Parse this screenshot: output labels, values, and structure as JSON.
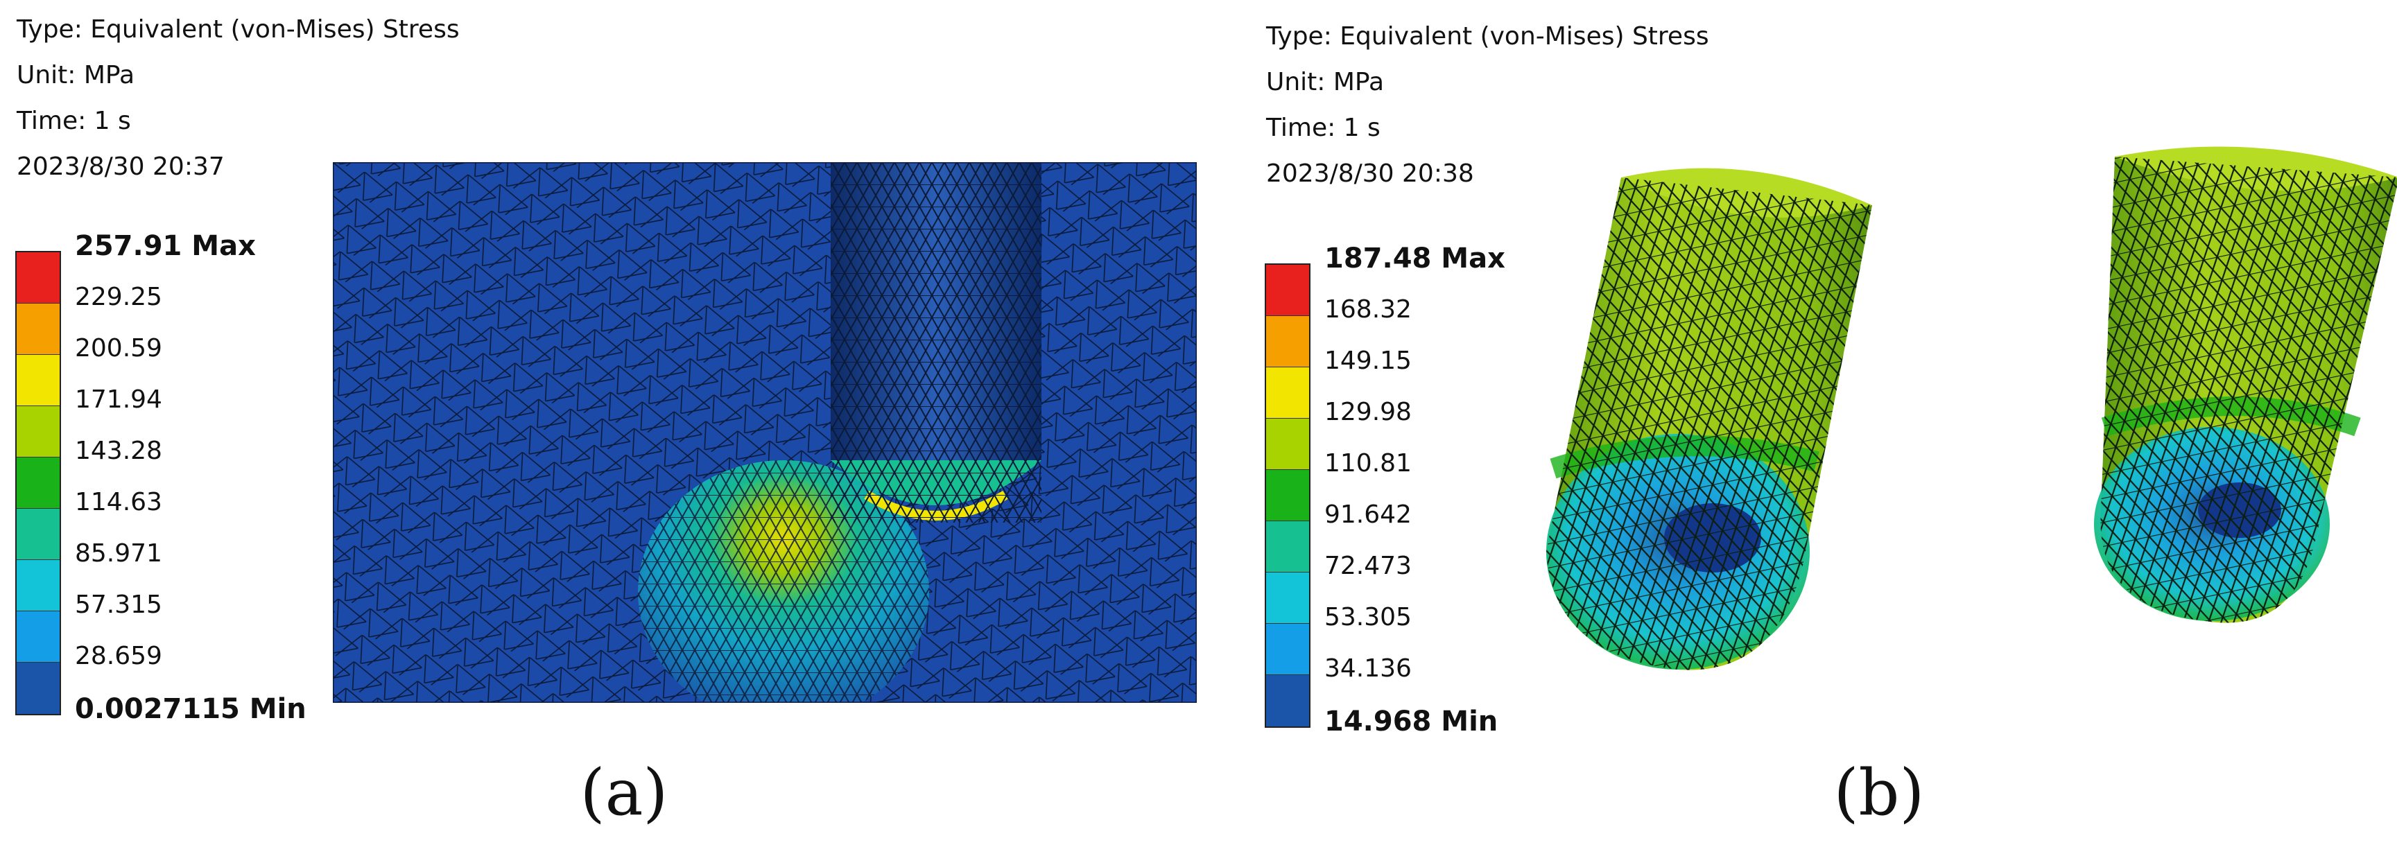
{
  "panels": [
    {
      "id": "a",
      "caption": "(a)",
      "info": {
        "type": "Type: Equivalent (von-Mises) Stress",
        "unit": "Unit: MPa",
        "time": "Time: 1 s",
        "timestamp": "2023/8/30 20:37"
      },
      "legend": {
        "labels": [
          "257.91 Max",
          "229.25",
          "200.59",
          "171.94",
          "143.28",
          "114.63",
          "85.971",
          "57.315",
          "28.659",
          "0.0027115 Min"
        ],
        "colors": [
          "#e8201e",
          "#f5a000",
          "#f2e600",
          "#a8d200",
          "#19b319",
          "#17c090",
          "#13c3d8",
          "#149ee8",
          "#1a55aa"
        ]
      }
    },
    {
      "id": "b",
      "caption": "(b)",
      "info": {
        "type": "Type: Equivalent (von-Mises) Stress",
        "unit": "Unit: MPa",
        "time": "Time: 1 s",
        "timestamp": "2023/8/30 20:38"
      },
      "legend": {
        "labels": [
          "187.48 Max",
          "168.32",
          "149.15",
          "129.98",
          "110.81",
          "91.642",
          "72.473",
          "53.305",
          "34.136",
          "14.968 Min"
        ],
        "colors": [
          "#e8201e",
          "#f5a000",
          "#f2e600",
          "#a8d200",
          "#19b319",
          "#17c090",
          "#13c3d8",
          "#149ee8",
          "#1a55aa"
        ]
      }
    }
  ]
}
